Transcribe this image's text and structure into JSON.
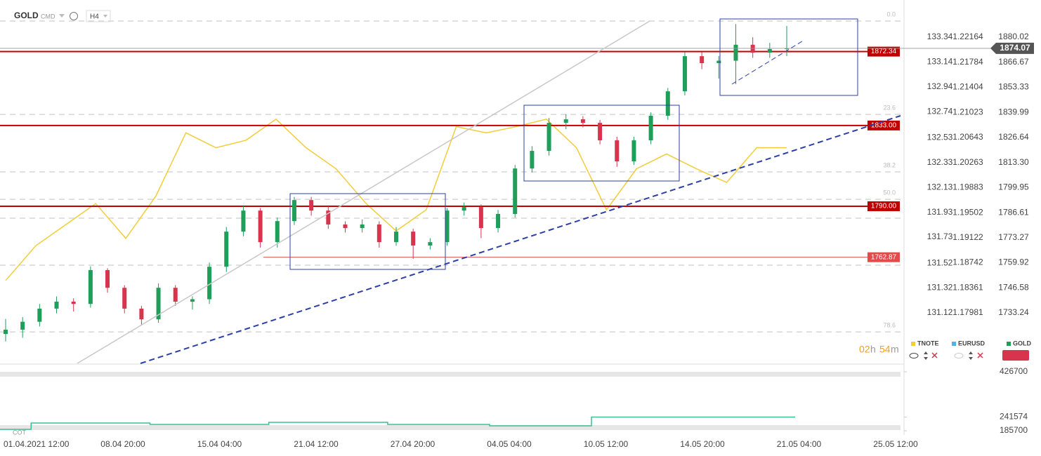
{
  "toolbar": {
    "symbol": "GOLD",
    "market": "CMD",
    "interval": "H4"
  },
  "chart_data": {
    "type": "candlestick",
    "x_labels": [
      "01.04.2021 12:00",
      "08.04 20:00",
      "15.04 04:00",
      "21.04 12:00",
      "27.04 20:00",
      "04.05 04:00",
      "10.05 12:00",
      "14.05 20:00",
      "21.05 04:00",
      "25.05 12:00"
    ],
    "gold": {
      "name": "GOLD",
      "up_color": "#1f9e5a",
      "down_color": "#d9344e",
      "ylim": [
        1706.34,
        1896.08
      ],
      "yticks": [
        1880.02,
        1866.67,
        1853.33,
        1839.99,
        1826.64,
        {
          "value": 1813.3,
          "label": "1813.30"
        },
        1799.95,
        1786.61,
        1773.27,
        1759.92,
        1746.58,
        1733.24
      ],
      "last_price": 1874.07,
      "candles": [
        [
          1722.0,
          1730,
          1718,
          1724.3
        ],
        [
          1724.3,
          1731,
          1720,
          1728.5
        ],
        [
          1728.5,
          1738,
          1726,
          1735.5
        ],
        [
          1735.5,
          1742,
          1733,
          1739.2
        ],
        [
          1739.2,
          1741,
          1734,
          1738.0
        ],
        [
          1738.0,
          1758,
          1736,
          1756.0
        ],
        [
          1756.0,
          1757,
          1744,
          1746.6
        ],
        [
          1746.6,
          1748,
          1733,
          1735.5
        ],
        [
          1735.5,
          1737,
          1727,
          1729.8
        ],
        [
          1729.8,
          1749,
          1728,
          1746.6
        ],
        [
          1746.6,
          1748,
          1737,
          1739.2
        ],
        [
          1739.2,
          1742,
          1735,
          1740.5
        ],
        [
          1740.5,
          1760,
          1738,
          1757.8
        ],
        [
          1757.8,
          1779,
          1755,
          1776.5
        ],
        [
          1776.5,
          1790,
          1774,
          1787.7
        ],
        [
          1787.7,
          1789,
          1768,
          1770.9
        ],
        [
          1770.9,
          1784,
          1768,
          1782.1
        ],
        [
          1782.1,
          1795,
          1780,
          1793.3
        ],
        [
          1793.3,
          1795,
          1785,
          1787.7
        ],
        [
          1787.7,
          1790,
          1778,
          1780.3
        ],
        [
          1780.3,
          1782,
          1776,
          1778.4
        ],
        [
          1778.4,
          1783,
          1776,
          1780.3
        ],
        [
          1780.3,
          1782,
          1768,
          1770.9
        ],
        [
          1770.9,
          1779,
          1769,
          1776.5
        ],
        [
          1776.5,
          1778,
          1762,
          1769.1
        ],
        [
          1769.1,
          1773,
          1767,
          1770.9
        ],
        [
          1770.9,
          1789,
          1769,
          1787.7
        ],
        [
          1787.7,
          1792,
          1785,
          1789.6
        ],
        [
          1789.6,
          1791,
          1773,
          1778.4
        ],
        [
          1778.4,
          1788,
          1776,
          1785.9
        ],
        [
          1785.9,
          1812,
          1784,
          1810.1
        ],
        [
          1810.1,
          1822,
          1808,
          1819.5
        ],
        [
          1819.5,
          1837,
          1817,
          1834.4
        ],
        [
          1834.4,
          1839,
          1831,
          1836.3
        ],
        [
          1836.3,
          1838,
          1832,
          1834.4
        ],
        [
          1834.4,
          1836,
          1823,
          1825.1
        ],
        [
          1825.1,
          1827,
          1811,
          1813.9
        ],
        [
          1813.9,
          1827,
          1812,
          1825.1
        ],
        [
          1825.1,
          1840,
          1823,
          1838.2
        ],
        [
          1838.2,
          1853,
          1836,
          1851.2
        ],
        [
          1851.2,
          1872,
          1849,
          1869.9
        ],
        [
          1869.9,
          1872,
          1863,
          1866.2
        ],
        [
          1866.2,
          1870,
          1858,
          1867.5
        ],
        [
          1867.5,
          1887,
          1855,
          1876.0
        ],
        [
          1876.0,
          1880,
          1869,
          1871.8
        ],
        [
          1871.8,
          1877,
          1869,
          1873.7
        ],
        [
          1873.7,
          1886,
          1870,
          1874.07
        ]
      ]
    },
    "tnote": {
      "name": "TNOTE",
      "color": "#f2cd3a",
      "ylim": [
        130.713,
        133.583
      ],
      "yticks": [
        133.34,
        133.14,
        132.94,
        132.74,
        132.53,
        132.33,
        132.13,
        131.93,
        131.73,
        131.52,
        131.32,
        131.12
      ],
      "values": [
        131.38,
        131.66,
        131.83,
        132.0,
        131.72,
        132.06,
        132.57,
        132.45,
        132.51,
        132.68,
        132.45,
        132.28,
        132.0,
        131.78,
        131.95,
        132.62,
        132.57,
        132.62,
        132.68,
        132.45,
        131.95,
        132.28,
        132.4,
        132.28,
        132.17,
        132.45,
        132.45
      ]
    },
    "eurusd": {
      "name": "EURUSD",
      "color": "#4fb3e8",
      "ylim": [
        1.17215,
        1.22622
      ],
      "yticks": [
        1.22164,
        1.21784,
        1.21404,
        1.21023,
        1.20643,
        1.20263,
        1.19883,
        1.19502,
        1.19122,
        1.18742,
        1.18361,
        1.17981
      ]
    },
    "levels": [
      1872.34,
      {
        "value": 1833,
        "label": "1833.00"
      },
      {
        "value": 1790,
        "label": "1790.00"
      },
      1762.87
    ],
    "fib_levels": [
      {
        "label": "0.0",
        "price": 1888.6
      },
      {
        "label": "23.6",
        "price": 1838.9
      },
      {
        "label": "38.2",
        "price": 1808.3
      },
      {
        "label": "50.0",
        "price": 1793.7
      },
      {
        "label": "78.6",
        "price": 1723.1
      }
    ],
    "volume": {
      "label": "COT",
      "color": "#3dbf94",
      "ylim": [
        179940,
        441100
      ],
      "yticks": [
        426700,
        241574,
        185700
      ],
      "values": [
        191410,
        191410,
        217240,
        217240,
        217240,
        217240,
        217240,
        217240,
        217240,
        211500,
        211500,
        211500,
        211500,
        211500,
        211500,
        211500,
        220110,
        220110,
        220110,
        220110,
        220110,
        220110,
        220110,
        211500,
        211500,
        211500,
        211500,
        211500,
        211500,
        205760,
        205760,
        205760,
        205760,
        205760,
        205760,
        241574,
        241574,
        241574,
        241574,
        241574,
        241574,
        241574,
        241574,
        241574,
        241574,
        241574,
        241574
      ]
    },
    "timer": {
      "hours": "02",
      "h": "h",
      "minutes": "54",
      "m": "m"
    }
  }
}
